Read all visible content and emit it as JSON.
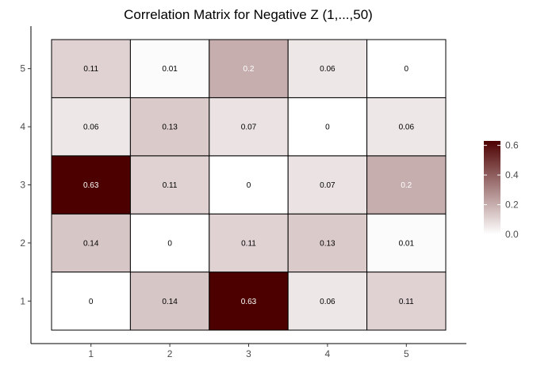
{
  "chart_data": {
    "type": "heatmap",
    "title": "Correlation Matrix for Negative Z (1,...,50)",
    "xlabel": "",
    "ylabel": "",
    "x_categories": [
      "1",
      "2",
      "3",
      "4",
      "5"
    ],
    "y_categories": [
      "1",
      "2",
      "3",
      "4",
      "5"
    ],
    "values": [
      [
        0,
        0.14,
        0.63,
        0.06,
        0.11
      ],
      [
        0.14,
        0,
        0.11,
        0.13,
        0.01
      ],
      [
        0.63,
        0.11,
        0,
        0.07,
        0.2
      ],
      [
        0.06,
        0.13,
        0.07,
        0,
        0.06
      ],
      [
        0.11,
        0.01,
        0.2,
        0.06,
        0
      ]
    ],
    "value_labels": [
      [
        "0",
        "0.14",
        "0.63",
        "0.06",
        "0.11"
      ],
      [
        "0.14",
        "0",
        "0.11",
        "0.13",
        "0.01"
      ],
      [
        "0.63",
        "0.11",
        "0",
        "0.07",
        "0.2"
      ],
      [
        "0.06",
        "0.13",
        "0.07",
        "0",
        "0.06"
      ],
      [
        "0.11",
        "0.01",
        "0.2",
        "0.06",
        "0"
      ]
    ],
    "color_scale": {
      "low": "#ffffff",
      "high": "#4d0000",
      "domain": [
        0,
        0.63
      ]
    },
    "legend": {
      "position": "right",
      "ticks": [
        0,
        0.2,
        0.4,
        0.6
      ],
      "tick_labels": [
        "0.0",
        "0.2",
        "0.4",
        "0.6"
      ]
    },
    "grid": false
  }
}
